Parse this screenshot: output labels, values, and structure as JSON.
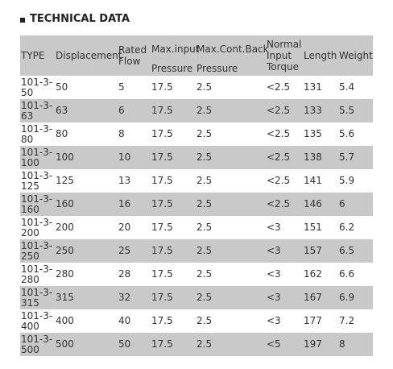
{
  "title": "TECHNICAL DATA",
  "table": {
    "header": [
      [
        "TYPE"
      ],
      [
        "Displacement"
      ],
      [
        "Rated",
        "Flow"
      ],
      [
        "Max.input",
        "Pressure"
      ],
      [
        "Max.Cont.Back",
        "Pressure"
      ],
      [
        "Normal",
        "Input",
        "Torque"
      ],
      [
        "Length"
      ],
      [
        "Weight"
      ]
    ],
    "rows": [
      [
        "101-3-50",
        "50",
        "5",
        "17.5",
        "2.5",
        "<2.5",
        "131",
        "5.4"
      ],
      [
        "101-3-63",
        "63",
        "6",
        "17.5",
        "2.5",
        "<2.5",
        "133",
        "5.5"
      ],
      [
        "101-3-80",
        "80",
        "8",
        "17.5",
        "2.5",
        "<2.5",
        "135",
        "5.6"
      ],
      [
        "101-3-100",
        "100",
        "10",
        "17.5",
        "2.5",
        "<2.5",
        "138",
        "5.7"
      ],
      [
        "101-3-125",
        "125",
        "13",
        "17.5",
        "2.5",
        "<2.5",
        "141",
        "5.9"
      ],
      [
        "101-3-160",
        "160",
        "16",
        "17.5",
        "2.5",
        "<2.5",
        "146",
        "6"
      ],
      [
        "101-3-200",
        "200",
        "20",
        "17.5",
        "2.5",
        "<3",
        "151",
        "6.2"
      ],
      [
        "101-3-250",
        "250",
        "25",
        "17.5",
        "2.5",
        "<3",
        "157",
        "6.5"
      ],
      [
        "101-3-280",
        "280",
        "28",
        "17.5",
        "2.5",
        "<3",
        "162",
        "6.6"
      ],
      [
        "101-3-315",
        "315",
        "32",
        "17.5",
        "2.5",
        "<3",
        "167",
        "6.9"
      ],
      [
        "101-3-400",
        "400",
        "40",
        "17.5",
        "2.5",
        "<3",
        "177",
        "7.2"
      ],
      [
        "101-3-500",
        "500",
        "50",
        "17.5",
        "2.5",
        "<5",
        "197",
        "8"
      ]
    ]
  }
}
